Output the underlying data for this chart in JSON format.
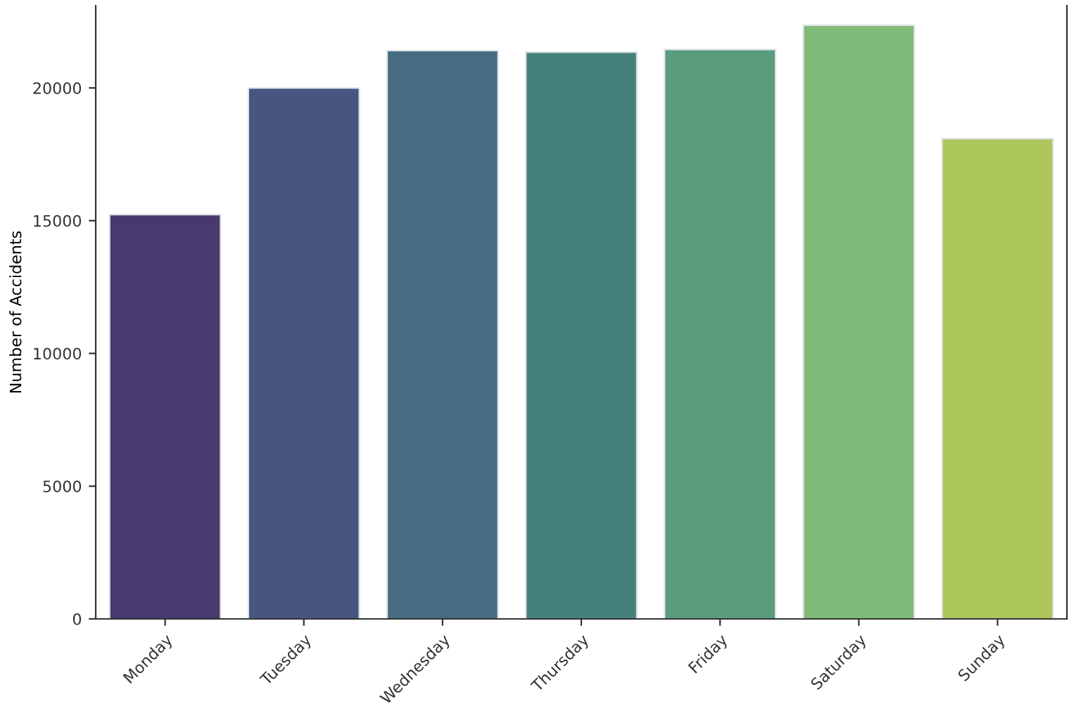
{
  "chart_data": {
    "type": "bar",
    "ylabel": "Number of Accidents",
    "categories": [
      "Monday",
      "Tuesday",
      "Wednesday",
      "Thursday",
      "Friday",
      "Saturday",
      "Sunday"
    ],
    "values": [
      15230,
      20000,
      21410,
      21350,
      21450,
      22360,
      18090
    ],
    "colors": [
      "#48396e",
      "#47567f",
      "#456c81",
      "#46807a",
      "#599c7e",
      "#80ba78",
      "#adc65b"
    ],
    "ylim": [
      0,
      23100
    ],
    "yticks": [
      0,
      5000,
      10000,
      15000,
      20000
    ]
  }
}
